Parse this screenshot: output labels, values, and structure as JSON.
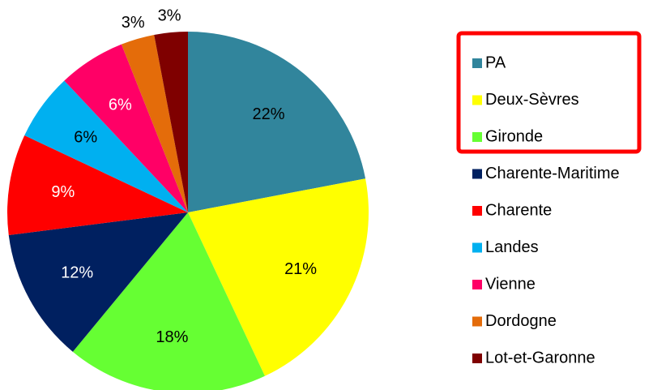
{
  "chart_data": {
    "type": "pie",
    "categories": [
      "PA",
      "Deux-Sèvres",
      "Gironde",
      "Charente-Maritime",
      "Charente",
      "Landes",
      "Vienne",
      "Dordogne",
      "Lot-et-Garonne"
    ],
    "values": [
      22,
      21,
      18,
      12,
      9,
      6,
      6,
      3,
      3
    ],
    "value_labels": [
      "22%",
      "21%",
      "18%",
      "12%",
      "9%",
      "6%",
      "6%",
      "3%",
      "3%"
    ],
    "colors": [
      "#31859c",
      "#ffff00",
      "#66ff33",
      "#002060",
      "#ff0000",
      "#00b0f0",
      "#ff0066",
      "#e46c0a",
      "#7f0000"
    ],
    "legend": "right"
  }
}
